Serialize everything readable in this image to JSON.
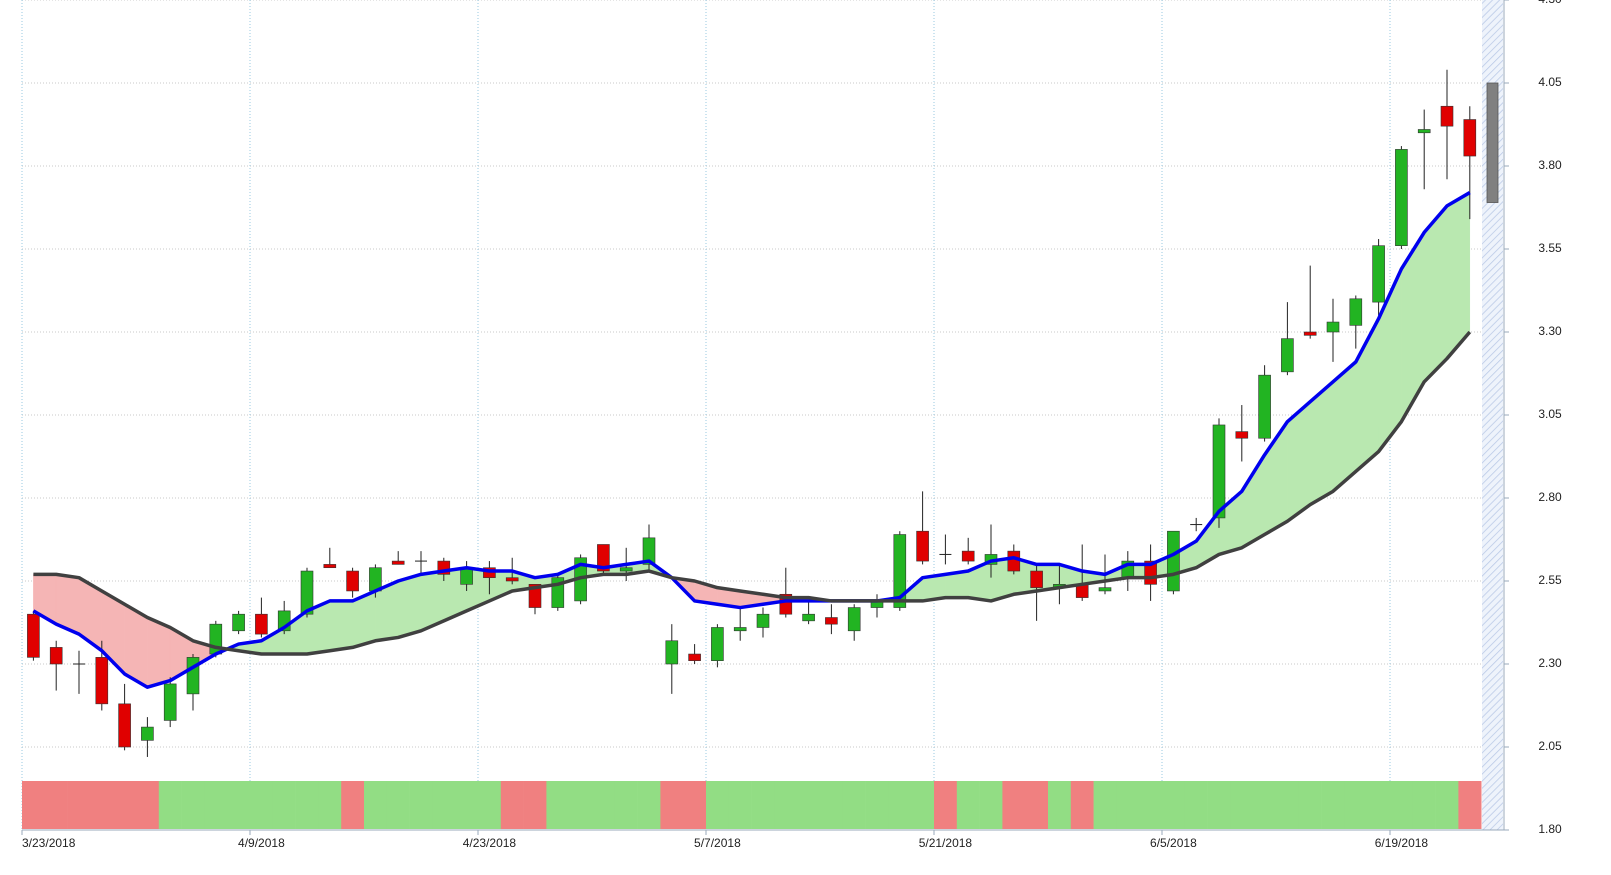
{
  "chart_data": {
    "type": "candlestick",
    "categories": [
      "3/23/2018",
      null,
      null,
      null,
      null,
      null,
      null,
      null,
      null,
      null,
      "4/9/2018",
      null,
      null,
      null,
      null,
      null,
      null,
      null,
      null,
      null,
      "4/23/2018",
      null,
      null,
      null,
      null,
      null,
      null,
      null,
      null,
      null,
      "5/7/2018",
      null,
      null,
      null,
      null,
      null,
      null,
      null,
      null,
      null,
      "5/21/2018",
      null,
      null,
      null,
      null,
      null,
      null,
      null,
      null,
      null,
      "6/5/2018",
      null,
      null,
      null,
      null,
      null,
      null,
      null,
      null,
      null,
      "6/19/2018",
      null,
      null,
      null
    ],
    "open": [
      2.45,
      2.35,
      2.3,
      2.32,
      2.18,
      2.07,
      2.13,
      2.21,
      2.33,
      2.4,
      2.45,
      2.4,
      2.45,
      2.6,
      2.58,
      2.52,
      2.61,
      2.61,
      2.61,
      2.54,
      2.59,
      2.56,
      2.54,
      2.47,
      2.49,
      2.66,
      2.58,
      2.6,
      2.3,
      2.33,
      2.31,
      2.4,
      2.41,
      2.51,
      2.43,
      2.44,
      2.4,
      2.47,
      2.47,
      2.7,
      2.63,
      2.64,
      2.6,
      2.64,
      2.58,
      2.53,
      2.54,
      2.52,
      2.56,
      2.61,
      2.52,
      2.72,
      2.74,
      3.0,
      2.98,
      3.18,
      3.3,
      3.3,
      3.32,
      3.39,
      3.56,
      3.9,
      3.98,
      3.94
    ],
    "high": [
      2.46,
      2.37,
      2.34,
      2.37,
      2.24,
      2.14,
      2.26,
      2.33,
      2.43,
      2.46,
      2.5,
      2.49,
      2.59,
      2.65,
      2.59,
      2.6,
      2.64,
      2.64,
      2.62,
      2.61,
      2.61,
      2.62,
      2.54,
      2.57,
      2.63,
      2.66,
      2.65,
      2.72,
      2.42,
      2.36,
      2.42,
      2.47,
      2.47,
      2.59,
      2.49,
      2.48,
      2.48,
      2.51,
      2.7,
      2.82,
      2.69,
      2.68,
      2.72,
      2.66,
      2.6,
      2.6,
      2.66,
      2.63,
      2.64,
      2.66,
      2.7,
      2.74,
      3.04,
      3.08,
      3.2,
      3.39,
      3.5,
      3.4,
      3.41,
      3.58,
      3.86,
      3.97,
      4.09,
      3.98
    ],
    "low": [
      2.31,
      2.22,
      2.21,
      2.16,
      2.04,
      2.02,
      2.11,
      2.16,
      2.32,
      2.39,
      2.38,
      2.39,
      2.44,
      2.59,
      2.5,
      2.5,
      2.6,
      2.57,
      2.55,
      2.52,
      2.51,
      2.54,
      2.45,
      2.46,
      2.48,
      2.57,
      2.55,
      2.58,
      2.21,
      2.3,
      2.29,
      2.37,
      2.38,
      2.44,
      2.42,
      2.39,
      2.37,
      2.44,
      2.46,
      2.6,
      2.6,
      2.6,
      2.56,
      2.57,
      2.43,
      2.48,
      2.49,
      2.51,
      2.52,
      2.49,
      2.51,
      2.7,
      2.71,
      2.91,
      2.97,
      3.17,
      3.28,
      3.21,
      3.25,
      3.35,
      3.55,
      3.73,
      3.76,
      3.64
    ],
    "close": [
      2.32,
      2.3,
      2.3,
      2.18,
      2.05,
      2.11,
      2.24,
      2.32,
      2.42,
      2.45,
      2.39,
      2.46,
      2.58,
      2.59,
      2.52,
      2.59,
      2.6,
      2.61,
      2.57,
      2.59,
      2.56,
      2.55,
      2.47,
      2.56,
      2.62,
      2.58,
      2.59,
      2.68,
      2.37,
      2.31,
      2.41,
      2.41,
      2.45,
      2.45,
      2.45,
      2.42,
      2.47,
      2.49,
      2.69,
      2.61,
      2.63,
      2.61,
      2.63,
      2.58,
      2.53,
      2.54,
      2.5,
      2.53,
      2.61,
      2.54,
      2.7,
      2.72,
      3.02,
      2.98,
      3.17,
      3.28,
      3.29,
      3.33,
      3.4,
      3.56,
      3.85,
      3.91,
      3.92,
      3.83
    ],
    "up_color": "#22b422",
    "down_color": "#e00000",
    "moving_averages": [
      {
        "color": "#0000ee",
        "values": [
          2.46,
          2.42,
          2.39,
          2.34,
          2.27,
          2.23,
          2.25,
          2.29,
          2.33,
          2.36,
          2.37,
          2.41,
          2.46,
          2.49,
          2.49,
          2.52,
          2.55,
          2.57,
          2.58,
          2.59,
          2.58,
          2.58,
          2.56,
          2.57,
          2.6,
          2.59,
          2.6,
          2.61,
          2.56,
          2.49,
          2.48,
          2.47,
          2.48,
          2.49,
          2.49,
          2.49,
          2.49,
          2.49,
          2.5,
          2.56,
          2.57,
          2.58,
          2.61,
          2.62,
          2.6,
          2.6,
          2.58,
          2.57,
          2.6,
          2.6,
          2.63,
          2.67,
          2.76,
          2.82,
          2.93,
          3.03,
          3.09,
          3.15,
          3.21,
          3.34,
          3.49,
          3.6,
          3.68,
          3.72
        ]
      },
      {
        "color": "#404040",
        "values": [
          2.57,
          2.57,
          2.56,
          2.52,
          2.48,
          2.44,
          2.41,
          2.37,
          2.35,
          2.34,
          2.33,
          2.33,
          2.33,
          2.34,
          2.35,
          2.37,
          2.38,
          2.4,
          2.43,
          2.46,
          2.49,
          2.52,
          2.53,
          2.54,
          2.56,
          2.57,
          2.57,
          2.58,
          2.56,
          2.55,
          2.53,
          2.52,
          2.51,
          2.5,
          2.5,
          2.49,
          2.49,
          2.49,
          2.49,
          2.49,
          2.5,
          2.5,
          2.49,
          2.51,
          2.52,
          2.53,
          2.54,
          2.55,
          2.56,
          2.56,
          2.57,
          2.59,
          2.63,
          2.65,
          2.69,
          2.73,
          2.78,
          2.82,
          2.88,
          2.94,
          3.03,
          3.15,
          3.22,
          3.3
        ]
      }
    ],
    "fill_up_color": "#b9e8b0",
    "fill_down_color": "#f5b5b5",
    "last_range": [
      3.69,
      4.05
    ],
    "signal_colors": [
      "#f08080",
      "#f08080",
      "#f08080",
      "#f08080",
      "#f08080",
      "#f08080",
      "#92dd84",
      "#92dd84",
      "#92dd84",
      "#92dd84",
      "#92dd84",
      "#92dd84",
      "#92dd84",
      "#92dd84",
      "#f08080",
      "#92dd84",
      "#92dd84",
      "#92dd84",
      "#92dd84",
      "#92dd84",
      "#92dd84",
      "#f08080",
      "#f08080",
      "#92dd84",
      "#92dd84",
      "#92dd84",
      "#92dd84",
      "#92dd84",
      "#f08080",
      "#f08080",
      "#92dd84",
      "#92dd84",
      "#92dd84",
      "#92dd84",
      "#92dd84",
      "#92dd84",
      "#92dd84",
      "#92dd84",
      "#92dd84",
      "#92dd84",
      "#f08080",
      "#92dd84",
      "#92dd84",
      "#f08080",
      "#f08080",
      "#92dd84",
      "#f08080",
      "#92dd84",
      "#92dd84",
      "#92dd84",
      "#92dd84",
      "#92dd84",
      "#92dd84",
      "#92dd84",
      "#92dd84",
      "#92dd84",
      "#92dd84",
      "#92dd84",
      "#92dd84",
      "#92dd84",
      "#92dd84",
      "#92dd84",
      "#92dd84",
      "#f08080"
    ],
    "ylim": [
      1.8,
      4.3
    ],
    "yticks": [
      {
        "value": 1.8,
        "label": "1.80"
      },
      2.05,
      {
        "value": 2.3,
        "label": "2.30"
      },
      2.55,
      {
        "value": 2.8,
        "label": "2.80"
      },
      3.05,
      {
        "value": 3.3,
        "label": "3.30"
      },
      3.55,
      {
        "value": 3.8,
        "label": "3.80"
      },
      4.05,
      {
        "value": 4.3,
        "label": "4.30"
      }
    ],
    "grid": true
  }
}
